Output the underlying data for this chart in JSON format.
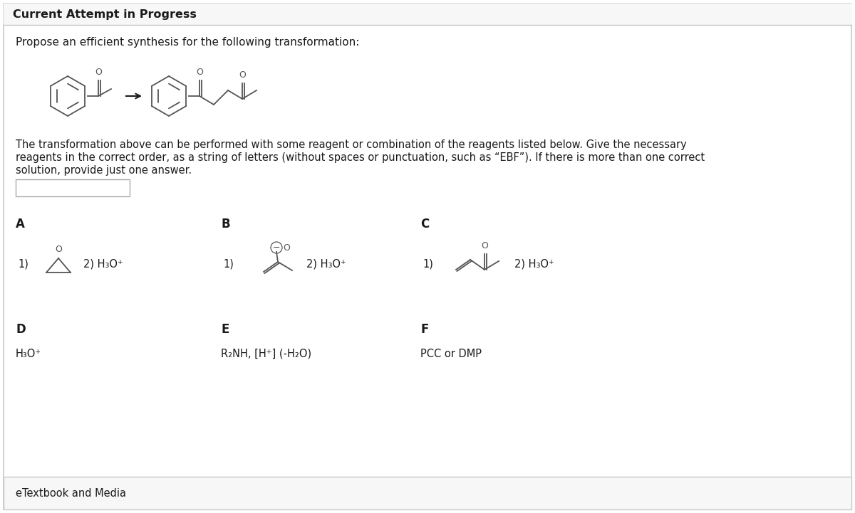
{
  "bg_color": "#ffffff",
  "header_text": "Current Attempt in Progress",
  "title_text": "Propose an efficient synthesis for the following transformation:",
  "body_text_1": "The transformation above can be performed with some reagent or combination of the reagents listed below. Give the necessary",
  "body_text_2": "reagents in the correct order, as a string of letters (without spaces or punctuation, such as “EBF”). If there is more than one correct",
  "body_text_3": "solution, provide just one answer.",
  "label_A": "A",
  "label_B": "B",
  "label_C": "C",
  "label_D": "D",
  "label_E": "E",
  "label_F": "F",
  "reagent_D": "H₃O⁺",
  "reagent_E": "R₂NH, [H⁺] (-H₂O)",
  "reagent_F": "PCC or DMP",
  "text_color": "#1a1a1a",
  "structure_color": "#555555",
  "footer_text": "eTextbook and Media"
}
